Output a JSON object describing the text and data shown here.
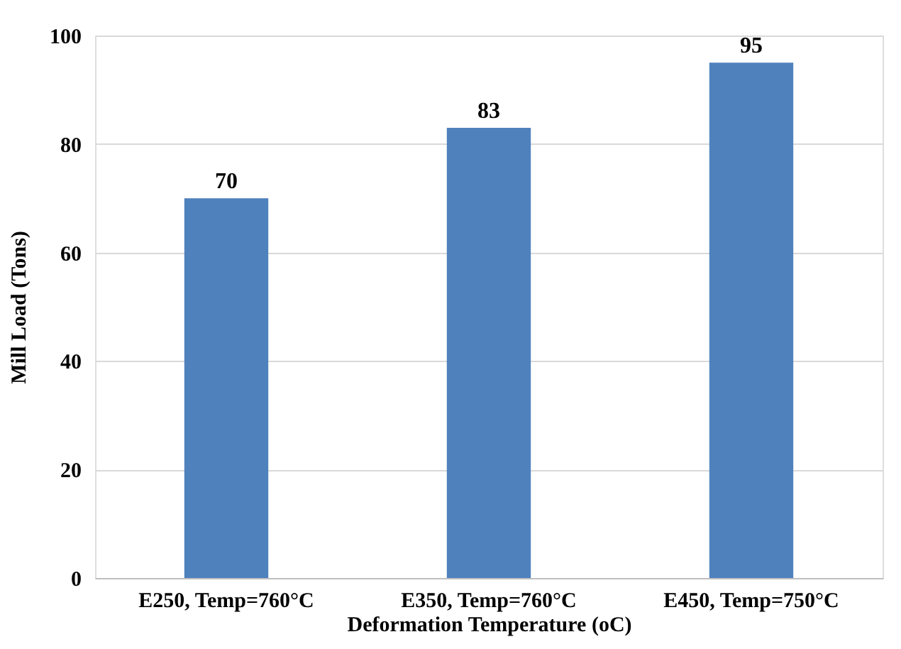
{
  "chart_data": {
    "type": "bar",
    "categories": [
      "E250, Temp=760°C",
      "E350, Temp=760°C",
      "E450, Temp=750°C"
    ],
    "values": [
      70,
      83,
      95
    ],
    "color": "#4f81bd",
    "xlabel": "Deformation Temperature (oC)",
    "ylabel": "Mill Load (Tons)",
    "ylim": [
      0,
      100
    ],
    "yticks": [
      0,
      20,
      40,
      60,
      80,
      100
    ],
    "grid": "y",
    "data_labels": true
  }
}
